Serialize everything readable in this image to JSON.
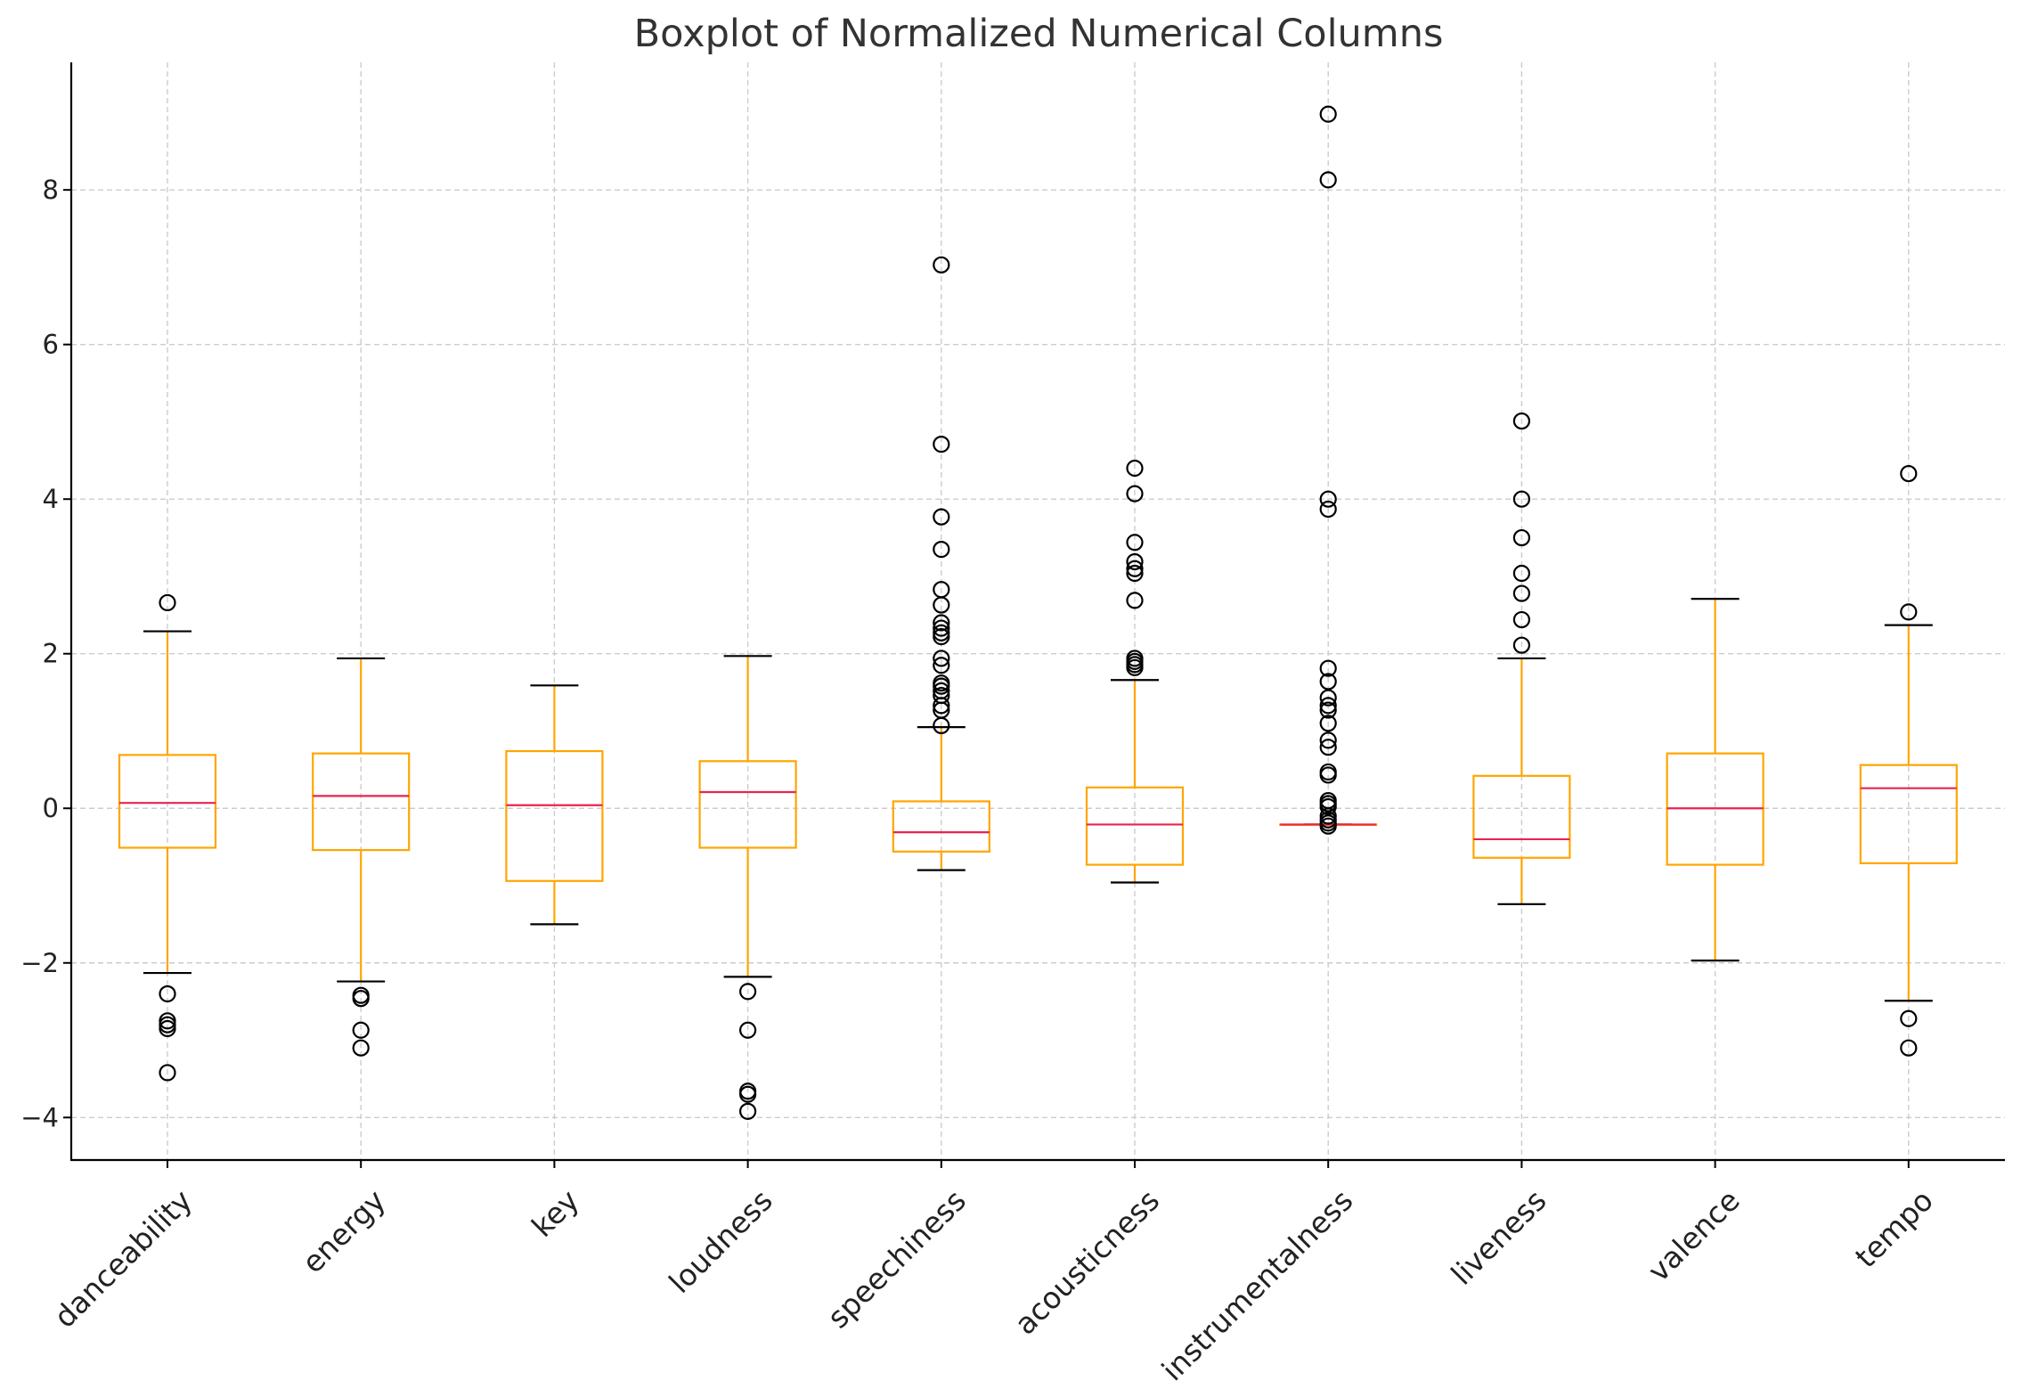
{
  "chart_data": {
    "type": "boxplot",
    "title": "Boxplot of Normalized Numerical Columns",
    "xlabel": "",
    "ylabel": "",
    "ylim": [
      -4.55,
      9.65
    ],
    "yticks": [
      -4,
      -2,
      0,
      2,
      4,
      6,
      8
    ],
    "ytick_labels": [
      "−4",
      "−2",
      "0",
      "2",
      "4",
      "6",
      "8"
    ],
    "grid": true,
    "colors": {
      "box": "#ffa500",
      "median": "#e8254f",
      "cap": "#000000",
      "grid": "#cccccc"
    },
    "categories": [
      "danceability",
      "energy",
      "key",
      "loudness",
      "speechiness",
      "acousticness",
      "instrumentalness",
      "liveness",
      "valence",
      "tempo"
    ],
    "series": [
      {
        "whisker_low": -2.13,
        "q1": -0.51,
        "median": 0.07,
        "q3": 0.69,
        "whisker_high": 2.29,
        "outliers": [
          2.66,
          -2.4,
          -2.75,
          -2.8,
          -2.85,
          -3.42
        ]
      },
      {
        "whisker_low": -2.24,
        "q1": -0.54,
        "median": 0.16,
        "q3": 0.71,
        "whisker_high": 1.94,
        "outliers": [
          -2.42,
          -2.46,
          -2.87,
          -3.1
        ]
      },
      {
        "whisker_low": -1.5,
        "q1": -0.94,
        "median": 0.04,
        "q3": 0.74,
        "whisker_high": 1.59,
        "outliers": []
      },
      {
        "whisker_low": -2.18,
        "q1": -0.51,
        "median": 0.21,
        "q3": 0.61,
        "whisker_high": 1.97,
        "outliers": [
          -2.37,
          -2.87,
          -3.66,
          -3.7,
          -3.92
        ]
      },
      {
        "whisker_low": -0.8,
        "q1": -0.56,
        "median": -0.31,
        "q3": 0.09,
        "whisker_high": 1.05,
        "outliers": [
          7.03,
          4.71,
          3.77,
          3.35,
          2.83,
          2.63,
          2.4,
          2.33,
          2.27,
          2.22,
          1.94,
          1.85,
          1.62,
          1.58,
          1.52,
          1.46,
          1.33,
          1.27,
          1.07
        ]
      },
      {
        "whisker_low": -0.96,
        "q1": -0.73,
        "median": -0.21,
        "q3": 0.27,
        "whisker_high": 1.66,
        "outliers": [
          4.4,
          4.07,
          3.44,
          3.19,
          3.1,
          3.04,
          2.69,
          1.94,
          1.9,
          1.86,
          1.82
        ]
      },
      {
        "whisker_low": -0.21,
        "q1": -0.21,
        "median": -0.21,
        "q3": -0.21,
        "whisker_high": -0.21,
        "outliers": [
          8.98,
          8.13,
          4.0,
          3.87,
          1.81,
          1.64,
          1.43,
          1.33,
          1.27,
          1.1,
          0.88,
          0.79,
          0.47,
          0.43,
          0.1,
          0.06,
          0.02,
          -0.1,
          -0.15,
          -0.19,
          -0.23
        ]
      },
      {
        "whisker_low": -1.24,
        "q1": -0.64,
        "median": -0.4,
        "q3": 0.42,
        "whisker_high": 1.94,
        "outliers": [
          5.01,
          4.0,
          3.5,
          3.04,
          2.78,
          2.44,
          2.11
        ]
      },
      {
        "whisker_low": -1.97,
        "q1": -0.73,
        "median": 0.0,
        "q3": 0.71,
        "whisker_high": 2.71,
        "outliers": []
      },
      {
        "whisker_low": -2.49,
        "q1": -0.71,
        "median": 0.26,
        "q3": 0.56,
        "whisker_high": 2.37,
        "outliers": [
          4.33,
          2.54,
          -2.72,
          -3.1
        ]
      }
    ]
  }
}
